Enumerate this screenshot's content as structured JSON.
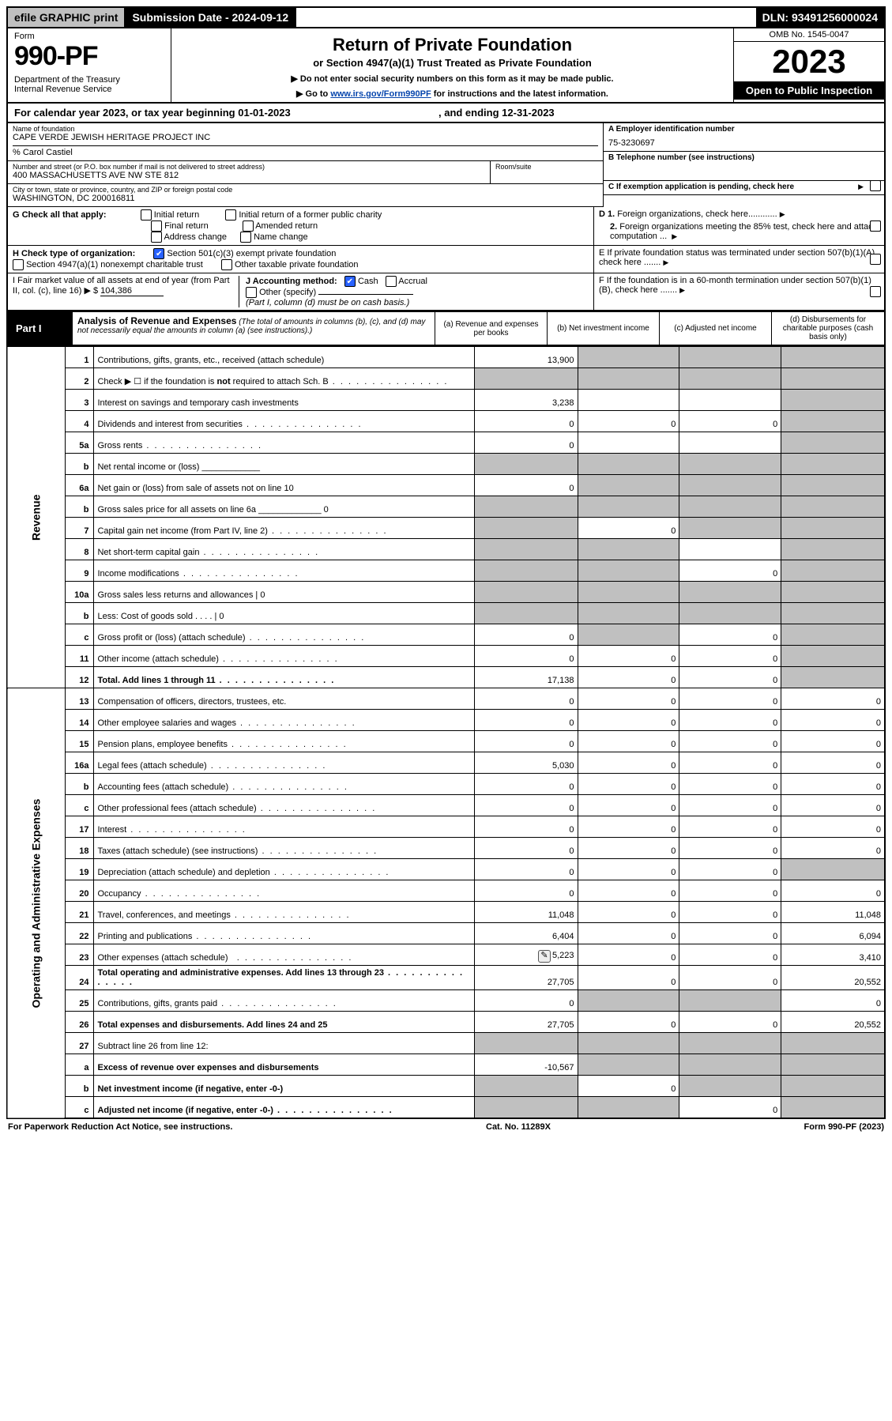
{
  "topbar": {
    "efile": "efile GRAPHIC print",
    "subdate_label": "Submission Date - ",
    "subdate": "2024-09-12",
    "dln_label": "DLN: ",
    "dln": "93491256000024"
  },
  "header": {
    "form_word": "Form",
    "form_num": "990-PF",
    "dept": "Department of the Treasury\nInternal Revenue Service",
    "title": "Return of Private Foundation",
    "subtitle": "or Section 4947(a)(1) Trust Treated as Private Foundation",
    "note1": "▶ Do not enter social security numbers on this form as it may be made public.",
    "note2_pre": "▶ Go to ",
    "note2_link": "www.irs.gov/Form990PF",
    "note2_post": " for instructions and the latest information.",
    "omb": "OMB No. 1545-0047",
    "year": "2023",
    "open": "Open to Public Inspection"
  },
  "calendar": {
    "text_a": "For calendar year 2023, or tax year beginning ",
    "begin": "01-01-2023",
    "text_b": " , and ending ",
    "end": "12-31-2023"
  },
  "ident": {
    "name_lbl": "Name of foundation",
    "name": "CAPE VERDE JEWISH HERITAGE PROJECT INC",
    "care_of": "% Carol Castiel",
    "addr_lbl": "Number and street (or P.O. box number if mail is not delivered to street address)",
    "addr": "400 MASSACHUSETTS AVE NW STE 812",
    "room_lbl": "Room/suite",
    "city_lbl": "City or town, state or province, country, and ZIP or foreign postal code",
    "city": "WASHINGTON, DC  200016811",
    "a_lbl": "A Employer identification number",
    "ein": "75-3230697",
    "b_lbl": "B Telephone number (see instructions)",
    "c_lbl": "C If exemption application is pending, check here",
    "d1_lbl": "D 1. Foreign organizations, check here............",
    "d2_lbl": "2. Foreign organizations meeting the 85% test, check here and attach computation ...",
    "e_lbl": "E  If private foundation status was terminated under section 507(b)(1)(A), check here .......",
    "f_lbl": "F  If the foundation is in a 60-month termination under section 507(b)(1)(B), check here .......",
    "g_label": "G Check all that apply:",
    "g_opts": [
      "Initial return",
      "Initial return of a former public charity",
      "Final return",
      "Amended return",
      "Address change",
      "Name change"
    ],
    "h_label": "H Check type of organization:",
    "h_opt1": "Section 501(c)(3) exempt private foundation",
    "h_opt2": "Section 4947(a)(1) nonexempt charitable trust",
    "h_opt3": "Other taxable private foundation",
    "i_text": "I Fair market value of all assets at end of year (from Part II, col. (c), line 16) ▶ $",
    "i_value": "104,386",
    "j_text": "J Accounting method:",
    "j_cash": "Cash",
    "j_accr": "Accrual",
    "j_other": "Other (specify)",
    "j_note": "(Part I, column (d) must be on cash basis.)"
  },
  "part1": {
    "label": "Part I",
    "title": "Analysis of Revenue and Expenses",
    "title_note": " (The total of amounts in columns (b), (c), and (d) may not necessarily equal the amounts in column (a) (see instructions).)",
    "col_a": "(a)   Revenue and expenses per books",
    "col_b": "(b)   Net investment income",
    "col_c": "(c)   Adjusted net income",
    "col_d": "(d)   Disbursements for charitable purposes (cash basis only)",
    "side_rev": "Revenue",
    "side_exp": "Operating and Administrative Expenses"
  },
  "rows": [
    {
      "ln": "1",
      "desc": "Contributions, gifts, grants, etc., received (attach schedule)",
      "a": "13,900",
      "b": "",
      "c": "",
      "d": "",
      "bg": true,
      "cg": true,
      "dg": true
    },
    {
      "ln": "2",
      "desc": "Check ▶ ☐ if the foundation is <b>not</b> required to attach Sch. B",
      "a": "",
      "b": "",
      "c": "",
      "d": "",
      "ag": true,
      "bg": true,
      "cg": true,
      "dg": true,
      "dots": true
    },
    {
      "ln": "3",
      "desc": "Interest on savings and temporary cash investments",
      "a": "3,238",
      "b": "",
      "c": "",
      "d": "",
      "dg": true
    },
    {
      "ln": "4",
      "desc": "Dividends and interest from securities",
      "a": "0",
      "b": "0",
      "c": "0",
      "d": "",
      "dg": true,
      "dots": true
    },
    {
      "ln": "5a",
      "desc": "Gross rents",
      "a": "0",
      "b": "",
      "c": "",
      "d": "",
      "dg": true,
      "dots": true
    },
    {
      "ln": "b",
      "desc": "Net rental income or (loss)  ____________",
      "a": "",
      "b": "",
      "c": "",
      "d": "",
      "ag": true,
      "bg": true,
      "cg": true,
      "dg": true
    },
    {
      "ln": "6a",
      "desc": "Net gain or (loss) from sale of assets not on line 10",
      "a": "0",
      "b": "",
      "c": "",
      "d": "",
      "bg": true,
      "cg": true,
      "dg": true
    },
    {
      "ln": "b",
      "desc": "Gross sales price for all assets on line 6a _____________ 0",
      "a": "",
      "b": "",
      "c": "",
      "d": "",
      "ag": true,
      "bg": true,
      "cg": true,
      "dg": true
    },
    {
      "ln": "7",
      "desc": "Capital gain net income (from Part IV, line 2)",
      "a": "",
      "b": "0",
      "c": "",
      "d": "",
      "ag": true,
      "cg": true,
      "dg": true,
      "dots": true
    },
    {
      "ln": "8",
      "desc": "Net short-term capital gain",
      "a": "",
      "b": "",
      "c": "",
      "d": "",
      "ag": true,
      "bg": true,
      "dg": true,
      "dots": true
    },
    {
      "ln": "9",
      "desc": "Income modifications",
      "a": "",
      "b": "",
      "c": "0",
      "d": "",
      "ag": true,
      "bg": true,
      "dg": true,
      "dots": true
    },
    {
      "ln": "10a",
      "desc": "Gross sales less returns and allowances                           | 0",
      "a": "",
      "b": "",
      "c": "",
      "d": "",
      "ag": true,
      "bg": true,
      "cg": true,
      "dg": true
    },
    {
      "ln": "b",
      "desc": "Less: Cost of goods sold      . . . .                                      | 0",
      "a": "",
      "b": "",
      "c": "",
      "d": "",
      "ag": true,
      "bg": true,
      "cg": true,
      "dg": true
    },
    {
      "ln": "c",
      "desc": "Gross profit or (loss) (attach schedule)",
      "a": "0",
      "b": "",
      "c": "0",
      "d": "",
      "bg": true,
      "dg": true,
      "dots": true
    },
    {
      "ln": "11",
      "desc": "Other income (attach schedule)",
      "a": "0",
      "b": "0",
      "c": "0",
      "d": "",
      "dg": true,
      "dots": true
    },
    {
      "ln": "12",
      "desc": "<b>Total.</b> Add lines 1 through 11",
      "a": "17,138",
      "b": "0",
      "c": "0",
      "d": "",
      "dg": true,
      "dots": true,
      "bold": true
    },
    {
      "ln": "13",
      "desc": "Compensation of officers, directors, trustees, etc.",
      "a": "0",
      "b": "0",
      "c": "0",
      "d": "0"
    },
    {
      "ln": "14",
      "desc": "Other employee salaries and wages",
      "a": "0",
      "b": "0",
      "c": "0",
      "d": "0",
      "dots": true
    },
    {
      "ln": "15",
      "desc": "Pension plans, employee benefits",
      "a": "0",
      "b": "0",
      "c": "0",
      "d": "0",
      "dots": true
    },
    {
      "ln": "16a",
      "desc": "Legal fees (attach schedule)",
      "a": "5,030",
      "b": "0",
      "c": "0",
      "d": "0",
      "dots": true
    },
    {
      "ln": "b",
      "desc": "Accounting fees (attach schedule)",
      "a": "0",
      "b": "0",
      "c": "0",
      "d": "0",
      "dots": true
    },
    {
      "ln": "c",
      "desc": "Other professional fees (attach schedule)",
      "a": "0",
      "b": "0",
      "c": "0",
      "d": "0",
      "dots": true
    },
    {
      "ln": "17",
      "desc": "Interest",
      "a": "0",
      "b": "0",
      "c": "0",
      "d": "0",
      "dots": true
    },
    {
      "ln": "18",
      "desc": "Taxes (attach schedule) (see instructions)",
      "a": "0",
      "b": "0",
      "c": "0",
      "d": "0",
      "dots": true
    },
    {
      "ln": "19",
      "desc": "Depreciation (attach schedule) and depletion",
      "a": "0",
      "b": "0",
      "c": "0",
      "d": "",
      "dg": true,
      "dots": true
    },
    {
      "ln": "20",
      "desc": "Occupancy",
      "a": "0",
      "b": "0",
      "c": "0",
      "d": "0",
      "dots": true
    },
    {
      "ln": "21",
      "desc": "Travel, conferences, and meetings",
      "a": "11,048",
      "b": "0",
      "c": "0",
      "d": "11,048",
      "dots": true
    },
    {
      "ln": "22",
      "desc": "Printing and publications",
      "a": "6,404",
      "b": "0",
      "c": "0",
      "d": "6,094",
      "dots": true
    },
    {
      "ln": "23",
      "desc": "Other expenses (attach schedule)",
      "a": "5,223",
      "b": "0",
      "c": "0",
      "d": "3,410",
      "dots": true,
      "icon": true
    },
    {
      "ln": "24",
      "desc": "<b>Total operating and administrative expenses.</b> Add lines 13 through 23",
      "a": "27,705",
      "b": "0",
      "c": "0",
      "d": "20,552",
      "dots": true,
      "bold": true
    },
    {
      "ln": "25",
      "desc": "Contributions, gifts, grants paid",
      "a": "0",
      "b": "",
      "c": "",
      "d": "0",
      "bg": true,
      "cg": true,
      "dots": true
    },
    {
      "ln": "26",
      "desc": "<b>Total expenses and disbursements.</b> Add lines 24 and 25",
      "a": "27,705",
      "b": "0",
      "c": "0",
      "d": "20,552",
      "bold": true
    },
    {
      "ln": "27",
      "desc": "Subtract line 26 from line 12:",
      "a": "",
      "b": "",
      "c": "",
      "d": "",
      "ag": true,
      "bg": true,
      "cg": true,
      "dg": true
    },
    {
      "ln": "a",
      "desc": "<b>Excess of revenue over expenses and disbursements</b>",
      "a": "-10,567",
      "b": "",
      "c": "",
      "d": "",
      "bg": true,
      "cg": true,
      "dg": true,
      "bold": true
    },
    {
      "ln": "b",
      "desc": "<b>Net investment income</b> (if negative, enter -0-)",
      "a": "",
      "b": "0",
      "c": "",
      "d": "",
      "ag": true,
      "cg": true,
      "dg": true,
      "bold": true
    },
    {
      "ln": "c",
      "desc": "<b>Adjusted net income</b> (if negative, enter -0-)",
      "a": "",
      "b": "",
      "c": "0",
      "d": "",
      "ag": true,
      "bg": true,
      "dg": true,
      "bold": true,
      "dots": true
    }
  ],
  "footer": {
    "left": "For Paperwork Reduction Act Notice, see instructions.",
    "mid": "Cat. No. 11289X",
    "right": "Form 990-PF (2023)"
  }
}
